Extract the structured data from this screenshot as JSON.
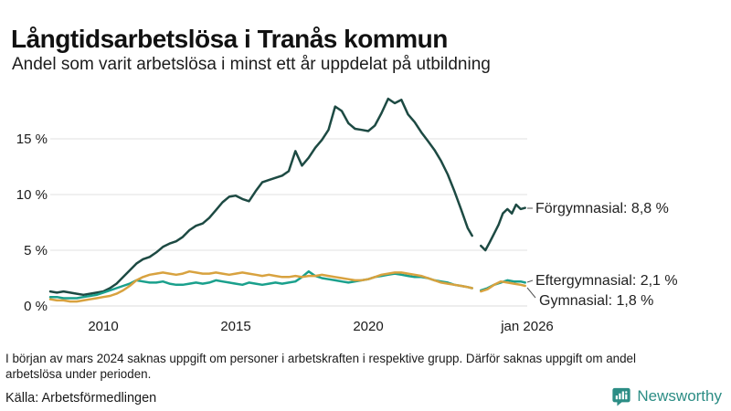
{
  "header": {},
  "chart_data": {
    "type": "line",
    "title": "Långtidsarbetslösa i Tranås kommun",
    "subtitle": "Andel som varit arbetslösa i minst ett år uppdelat på utbildning",
    "unit": "%",
    "grid": "horizontal-only",
    "legend_position": "end-of-line-labels",
    "x_axis": {
      "range": [
        2008,
        2026.1
      ],
      "ticks": [
        {
          "year": 2010,
          "label": "2010"
        },
        {
          "year": 2015,
          "label": "2015"
        },
        {
          "year": 2020,
          "label": "2020"
        },
        {
          "year": 2026,
          "label": "jan 2026"
        }
      ]
    },
    "y_axis": {
      "range": [
        0,
        19
      ],
      "ticks": [
        0,
        5,
        10,
        15
      ],
      "tick_labels": [
        "0 %",
        "5 %",
        "10 %",
        "15 %"
      ]
    },
    "data_gap": {
      "approx_start": 2023.95,
      "approx_end": 2024.2
    },
    "series": [
      {
        "id": "forgymnasial",
        "name": "Förgymnasial",
        "end_label": "Förgymnasial: 8,8 %",
        "end_value": "8,8 %",
        "color": "#1d4a43",
        "segments": [
          [
            [
              2008.0,
              1.3
            ],
            [
              2008.25,
              1.2
            ],
            [
              2008.5,
              1.3
            ],
            [
              2008.75,
              1.2
            ],
            [
              2009.0,
              1.1
            ],
            [
              2009.25,
              1.0
            ],
            [
              2009.5,
              1.1
            ],
            [
              2009.75,
              1.2
            ],
            [
              2010.0,
              1.3
            ],
            [
              2010.25,
              1.6
            ],
            [
              2010.5,
              2.0
            ],
            [
              2010.75,
              2.6
            ],
            [
              2011.0,
              3.2
            ],
            [
              2011.25,
              3.8
            ],
            [
              2011.5,
              4.2
            ],
            [
              2011.75,
              4.4
            ],
            [
              2012.0,
              4.8
            ],
            [
              2012.25,
              5.3
            ],
            [
              2012.5,
              5.6
            ],
            [
              2012.75,
              5.8
            ],
            [
              2013.0,
              6.2
            ],
            [
              2013.25,
              6.8
            ],
            [
              2013.5,
              7.2
            ],
            [
              2013.75,
              7.4
            ],
            [
              2014.0,
              7.9
            ],
            [
              2014.25,
              8.6
            ],
            [
              2014.5,
              9.3
            ],
            [
              2014.75,
              9.8
            ],
            [
              2015.0,
              9.9
            ],
            [
              2015.25,
              9.6
            ],
            [
              2015.5,
              9.4
            ],
            [
              2015.75,
              10.3
            ],
            [
              2016.0,
              11.1
            ],
            [
              2016.25,
              11.3
            ],
            [
              2016.5,
              11.5
            ],
            [
              2016.75,
              11.7
            ],
            [
              2017.0,
              12.1
            ],
            [
              2017.25,
              13.9
            ],
            [
              2017.5,
              12.6
            ],
            [
              2017.75,
              13.3
            ],
            [
              2018.0,
              14.2
            ],
            [
              2018.25,
              14.9
            ],
            [
              2018.5,
              15.8
            ],
            [
              2018.75,
              17.9
            ],
            [
              2019.0,
              17.5
            ],
            [
              2019.25,
              16.4
            ],
            [
              2019.5,
              15.9
            ],
            [
              2019.75,
              15.8
            ],
            [
              2020.0,
              15.7
            ],
            [
              2020.25,
              16.2
            ],
            [
              2020.5,
              17.3
            ],
            [
              2020.75,
              18.6
            ],
            [
              2021.0,
              18.2
            ],
            [
              2021.25,
              18.5
            ],
            [
              2021.5,
              17.2
            ],
            [
              2021.75,
              16.5
            ],
            [
              2022.0,
              15.6
            ],
            [
              2022.25,
              14.8
            ],
            [
              2022.5,
              14.0
            ],
            [
              2022.75,
              13.0
            ],
            [
              2023.0,
              11.8
            ],
            [
              2023.25,
              10.3
            ],
            [
              2023.5,
              8.7
            ],
            [
              2023.75,
              7.0
            ],
            [
              2023.92,
              6.3
            ]
          ],
          [
            [
              2024.25,
              5.4
            ],
            [
              2024.42,
              5.0
            ],
            [
              2024.58,
              5.7
            ],
            [
              2024.75,
              6.5
            ],
            [
              2024.92,
              7.3
            ],
            [
              2025.08,
              8.3
            ],
            [
              2025.25,
              8.7
            ],
            [
              2025.42,
              8.3
            ],
            [
              2025.58,
              9.1
            ],
            [
              2025.75,
              8.7
            ],
            [
              2025.92,
              8.8
            ]
          ]
        ]
      },
      {
        "id": "eftergymnasial",
        "name": "Eftergymnasial",
        "end_label": "Eftergymnasial: 2,1 %",
        "end_value": "2,1 %",
        "color": "#1aa08c",
        "segments": [
          [
            [
              2008.0,
              0.8
            ],
            [
              2008.25,
              0.8
            ],
            [
              2008.5,
              0.7
            ],
            [
              2008.75,
              0.7
            ],
            [
              2009.0,
              0.7
            ],
            [
              2009.25,
              0.8
            ],
            [
              2009.5,
              0.9
            ],
            [
              2009.75,
              1.0
            ],
            [
              2010.0,
              1.2
            ],
            [
              2010.25,
              1.4
            ],
            [
              2010.5,
              1.6
            ],
            [
              2010.75,
              1.8
            ],
            [
              2011.0,
              2.0
            ],
            [
              2011.25,
              2.3
            ],
            [
              2011.5,
              2.2
            ],
            [
              2011.75,
              2.1
            ],
            [
              2012.0,
              2.1
            ],
            [
              2012.25,
              2.2
            ],
            [
              2012.5,
              2.0
            ],
            [
              2012.75,
              1.9
            ],
            [
              2013.0,
              1.9
            ],
            [
              2013.25,
              2.0
            ],
            [
              2013.5,
              2.1
            ],
            [
              2013.75,
              2.0
            ],
            [
              2014.0,
              2.1
            ],
            [
              2014.25,
              2.3
            ],
            [
              2014.5,
              2.2
            ],
            [
              2014.75,
              2.1
            ],
            [
              2015.0,
              2.0
            ],
            [
              2015.25,
              1.9
            ],
            [
              2015.5,
              2.1
            ],
            [
              2015.75,
              2.0
            ],
            [
              2016.0,
              1.9
            ],
            [
              2016.25,
              2.0
            ],
            [
              2016.5,
              2.1
            ],
            [
              2016.75,
              2.0
            ],
            [
              2017.0,
              2.1
            ],
            [
              2017.25,
              2.2
            ],
            [
              2017.5,
              2.6
            ],
            [
              2017.75,
              3.1
            ],
            [
              2018.0,
              2.7
            ],
            [
              2018.25,
              2.5
            ],
            [
              2018.5,
              2.4
            ],
            [
              2018.75,
              2.3
            ],
            [
              2019.0,
              2.2
            ],
            [
              2019.25,
              2.1
            ],
            [
              2019.5,
              2.2
            ],
            [
              2019.75,
              2.3
            ],
            [
              2020.0,
              2.4
            ],
            [
              2020.25,
              2.6
            ],
            [
              2020.5,
              2.7
            ],
            [
              2020.75,
              2.8
            ],
            [
              2021.0,
              2.9
            ],
            [
              2021.25,
              2.8
            ],
            [
              2021.5,
              2.7
            ],
            [
              2021.75,
              2.6
            ],
            [
              2022.0,
              2.6
            ],
            [
              2022.25,
              2.5
            ],
            [
              2022.5,
              2.3
            ],
            [
              2022.75,
              2.2
            ],
            [
              2023.0,
              2.1
            ],
            [
              2023.25,
              1.9
            ],
            [
              2023.5,
              1.8
            ],
            [
              2023.75,
              1.7
            ],
            [
              2023.92,
              1.6
            ]
          ],
          [
            [
              2024.25,
              1.4
            ],
            [
              2024.5,
              1.6
            ],
            [
              2024.75,
              1.9
            ],
            [
              2025.0,
              2.1
            ],
            [
              2025.25,
              2.3
            ],
            [
              2025.5,
              2.2
            ],
            [
              2025.75,
              2.2
            ],
            [
              2025.92,
              2.1
            ]
          ]
        ]
      },
      {
        "id": "gymnasial",
        "name": "Gymnasial",
        "end_label": "Gymnasial: 1,8 %",
        "end_value": "1,8 %",
        "color": "#d8a23f",
        "segments": [
          [
            [
              2008.0,
              0.6
            ],
            [
              2008.25,
              0.5
            ],
            [
              2008.5,
              0.5
            ],
            [
              2008.75,
              0.4
            ],
            [
              2009.0,
              0.4
            ],
            [
              2009.25,
              0.5
            ],
            [
              2009.5,
              0.6
            ],
            [
              2009.75,
              0.7
            ],
            [
              2010.0,
              0.8
            ],
            [
              2010.25,
              0.9
            ],
            [
              2010.5,
              1.1
            ],
            [
              2010.75,
              1.4
            ],
            [
              2011.0,
              1.8
            ],
            [
              2011.25,
              2.3
            ],
            [
              2011.5,
              2.6
            ],
            [
              2011.75,
              2.8
            ],
            [
              2012.0,
              2.9
            ],
            [
              2012.25,
              3.0
            ],
            [
              2012.5,
              2.9
            ],
            [
              2012.75,
              2.8
            ],
            [
              2013.0,
              2.9
            ],
            [
              2013.25,
              3.1
            ],
            [
              2013.5,
              3.0
            ],
            [
              2013.75,
              2.9
            ],
            [
              2014.0,
              2.9
            ],
            [
              2014.25,
              3.0
            ],
            [
              2014.5,
              2.9
            ],
            [
              2014.75,
              2.8
            ],
            [
              2015.0,
              2.9
            ],
            [
              2015.25,
              3.0
            ],
            [
              2015.5,
              2.9
            ],
            [
              2015.75,
              2.8
            ],
            [
              2016.0,
              2.7
            ],
            [
              2016.25,
              2.8
            ],
            [
              2016.5,
              2.7
            ],
            [
              2016.75,
              2.6
            ],
            [
              2017.0,
              2.6
            ],
            [
              2017.25,
              2.7
            ],
            [
              2017.5,
              2.6
            ],
            [
              2017.75,
              2.7
            ],
            [
              2018.0,
              2.7
            ],
            [
              2018.25,
              2.8
            ],
            [
              2018.5,
              2.7
            ],
            [
              2018.75,
              2.6
            ],
            [
              2019.0,
              2.5
            ],
            [
              2019.25,
              2.4
            ],
            [
              2019.5,
              2.3
            ],
            [
              2019.75,
              2.3
            ],
            [
              2020.0,
              2.4
            ],
            [
              2020.25,
              2.6
            ],
            [
              2020.5,
              2.8
            ],
            [
              2020.75,
              2.9
            ],
            [
              2021.0,
              3.0
            ],
            [
              2021.25,
              3.0
            ],
            [
              2021.5,
              2.9
            ],
            [
              2021.75,
              2.8
            ],
            [
              2022.0,
              2.7
            ],
            [
              2022.25,
              2.5
            ],
            [
              2022.5,
              2.3
            ],
            [
              2022.75,
              2.1
            ],
            [
              2023.0,
              2.0
            ],
            [
              2023.25,
              1.9
            ],
            [
              2023.5,
              1.8
            ],
            [
              2023.75,
              1.7
            ],
            [
              2023.92,
              1.6
            ]
          ],
          [
            [
              2024.25,
              1.3
            ],
            [
              2024.5,
              1.5
            ],
            [
              2024.75,
              1.9
            ],
            [
              2025.0,
              2.2
            ],
            [
              2025.25,
              2.1
            ],
            [
              2025.5,
              2.0
            ],
            [
              2025.75,
              1.9
            ],
            [
              2025.92,
              1.8
            ]
          ]
        ]
      }
    ]
  },
  "footer": {
    "note": "I början av mars 2024 saknas uppgift om personer i arbetskraften i respektive grupp. Därför saknas uppgift om andel arbetslösa under perioden.",
    "source": "Källa: Arbetsförmedlingen",
    "brand": "Newsworthy"
  }
}
